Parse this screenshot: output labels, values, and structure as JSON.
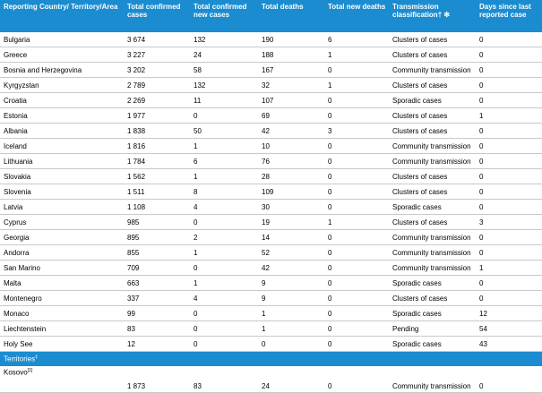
{
  "table": {
    "header": [
      "Reporting Country/ Territory/Area",
      "Total confirmed cases",
      "Total confirmed new cases",
      "Total deaths",
      "Total new deaths",
      "Transmission classification† ✻",
      "Days since last reported case"
    ],
    "rows": [
      [
        "Bulgaria",
        "3 674",
        "132",
        "190",
        "6",
        "Clusters of cases",
        "0"
      ],
      [
        "Greece",
        "3 227",
        "24",
        "188",
        "1",
        "Clusters of cases",
        "0"
      ],
      [
        "Bosnia and Herzegovina",
        "3 202",
        "58",
        "167",
        "0",
        "Community transmission",
        "0"
      ],
      [
        "Kyrgyzstan",
        "2 789",
        "132",
        "32",
        "1",
        "Clusters of cases",
        "0"
      ],
      [
        "Croatia",
        "2 269",
        "11",
        "107",
        "0",
        "Sporadic cases",
        "0"
      ],
      [
        "Estonia",
        "1 977",
        "0",
        "69",
        "0",
        "Clusters of cases",
        "1"
      ],
      [
        "Albania",
        "1 838",
        "50",
        "42",
        "3",
        "Clusters of cases",
        "0"
      ],
      [
        "Iceland",
        "1 816",
        "1",
        "10",
        "0",
        "Community transmission",
        "0"
      ],
      [
        "Lithuania",
        "1 784",
        "6",
        "76",
        "0",
        "Community transmission",
        "0"
      ],
      [
        "Slovakia",
        "1 562",
        "1",
        "28",
        "0",
        "Clusters of cases",
        "0"
      ],
      [
        "Slovenia",
        "1 511",
        "8",
        "109",
        "0",
        "Clusters of cases",
        "0"
      ],
      [
        "Latvia",
        "1 108",
        "4",
        "30",
        "0",
        "Sporadic cases",
        "0"
      ],
      [
        "Cyprus",
        "985",
        "0",
        "19",
        "1",
        "Clusters of cases",
        "3"
      ],
      [
        "Georgia",
        "895",
        "2",
        "14",
        "0",
        "Community transmission",
        "0"
      ],
      [
        "Andorra",
        "855",
        "1",
        "52",
        "0",
        "Community transmission",
        "0"
      ],
      [
        "San Marino",
        "709",
        "0",
        "42",
        "0",
        "Community transmission",
        "1"
      ],
      [
        "Malta",
        "663",
        "1",
        "9",
        "0",
        "Sporadic cases",
        "0"
      ],
      [
        "Montenegro",
        "337",
        "4",
        "9",
        "0",
        "Clusters of cases",
        "0"
      ],
      [
        "Monaco",
        "99",
        "0",
        "1",
        "0",
        "Sporadic cases",
        "12"
      ],
      [
        "Liechtenstein",
        "83",
        "0",
        "1",
        "0",
        "Pending",
        "54"
      ],
      [
        "Holy See",
        "12",
        "0",
        "0",
        "0",
        "Sporadic cases",
        "43"
      ]
    ],
    "territories_label": "Territories",
    "territories_note": "‡",
    "territory_rows": [
      [
        "Kosovo",
        "1 873",
        "83",
        "24",
        "0",
        "Community transmission",
        "0"
      ]
    ],
    "territory_notes": [
      "[1]"
    ]
  }
}
